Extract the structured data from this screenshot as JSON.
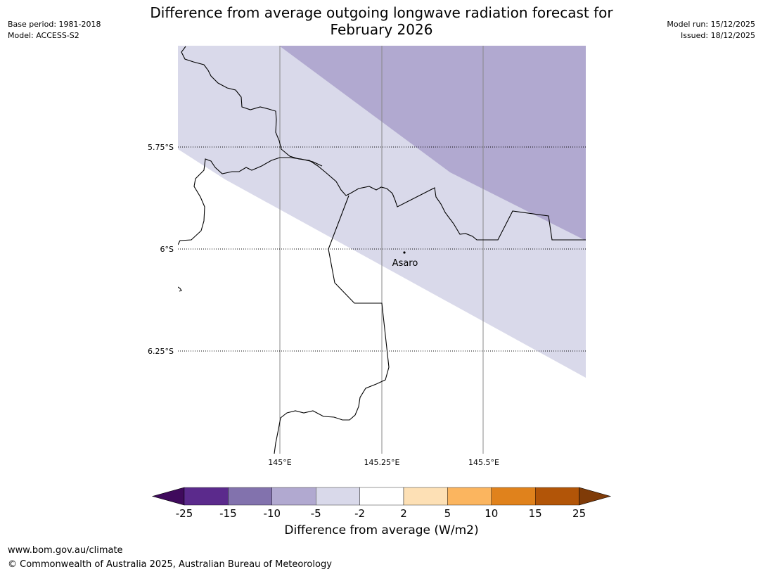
{
  "header": {
    "title_line1": "Difference from average outgoing longwave radiation forecast for",
    "title_line2": "February 2026",
    "base_period": "Base period: 1981-2018",
    "model": "Model: ACCESS-S2",
    "model_run": "Model run: 15/12/2025",
    "issued": "Issued: 18/12/2025"
  },
  "map": {
    "lat_labels": [
      "5.75°S",
      "6°S",
      "6.25°S"
    ],
    "lon_labels": [
      "145°E",
      "145.25°E",
      "145.5°E"
    ],
    "place": {
      "name": "Asaro"
    }
  },
  "colorbar": {
    "title": "Difference from average (W/m2)",
    "ticks": [
      "-25",
      "-15",
      "-10",
      "-5",
      "-2",
      "2",
      "5",
      "10",
      "15",
      "25"
    ],
    "colors": [
      "#3f0a5c",
      "#5b2a8c",
      "#8272ad",
      "#b1a9d0",
      "#d9d9ea",
      "#ffffff",
      "#fde0b5",
      "#fbb55f",
      "#e0821c",
      "#b25508",
      "#7f3b08"
    ]
  },
  "footer": {
    "url": "www.bom.gov.au/climate",
    "copyright": "© Commonwealth of Australia 2025, Australian Bureau of Meteorology"
  }
}
